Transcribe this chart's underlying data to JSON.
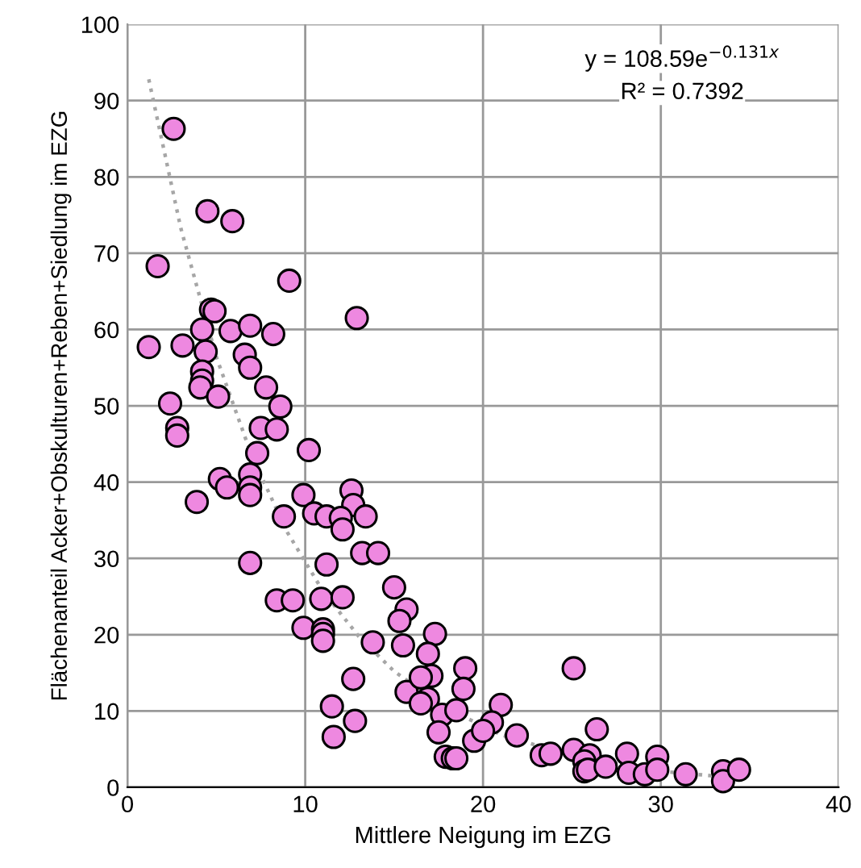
{
  "chart_data": {
    "type": "scatter",
    "xlabel": "Mittlere Neigung im EZG",
    "ylabel": "Flächenanteil Acker+Obskulturen+Reben+Siedlung im EZG",
    "xlim": [
      0,
      40
    ],
    "ylim": [
      0,
      100
    ],
    "xticks": [
      0,
      10,
      20,
      30,
      40
    ],
    "yticks": [
      0,
      10,
      20,
      30,
      40,
      50,
      60,
      70,
      80,
      90,
      100
    ],
    "grid": true,
    "marker": "circle",
    "annotations": [
      "y = 108.59e$^{−0.131x}$",
      "R² = 0.7392"
    ],
    "series": [
      {
        "type": "line",
        "color": "#a6a6a6",
        "line_style": "dotted",
        "marker": "none",
        "x": [
          1.2,
          3,
          5,
          7,
          9,
          11,
          13,
          15,
          18,
          21,
          25,
          30,
          34.4
        ],
        "values": [
          92.8,
          73.3,
          56.4,
          43.4,
          33.4,
          25.7,
          19.8,
          15.2,
          10.3,
          6.9,
          4.1,
          2.1,
          1.2
        ]
      },
      {
        "color": "#ee88e0",
        "x": [
          2.6,
          1.7,
          4.5,
          5.9,
          1.2,
          9.1,
          12.9,
          4.7,
          4.9,
          4.2,
          5.8,
          6.9,
          8.2,
          3.1,
          4.4,
          6.6,
          4.2,
          6.9,
          4.2,
          4.1,
          7.8,
          2.4,
          5.1,
          8.6,
          2.8,
          2.8,
          7.5,
          8.4,
          7.3,
          10.2,
          5.2,
          6.9,
          5.6,
          6.9,
          6.9,
          3.9,
          9.9,
          12.6,
          12.7,
          10.5,
          11.2,
          12.0,
          13.4,
          8.8,
          12.1,
          13.2,
          14.1,
          6.9,
          11.2,
          15.0,
          8.4,
          9.3,
          10.9,
          12.1,
          15.7,
          9.9,
          11.0,
          11.0,
          11.0,
          15.3,
          13.8,
          15.5,
          17.3,
          12.7,
          16.9,
          19.0,
          15.7,
          16.9,
          17.1,
          16.5,
          18.9,
          11.5,
          12.8,
          16.5,
          17.7,
          18.5,
          21.0,
          20.5,
          17.5,
          19.5,
          20.0,
          21.9,
          11.6,
          17.9,
          18.3,
          18.5,
          25.1,
          26.4,
          23.3,
          23.8,
          25.1,
          26.0,
          25.7,
          25.7,
          25.9,
          26.9,
          28.1,
          28.2,
          29.1,
          29.8,
          29.8,
          31.4,
          33.5,
          33.5,
          34.4
        ],
        "values": [
          86.3,
          68.3,
          75.5,
          74.2,
          57.7,
          66.4,
          61.5,
          62.6,
          62.4,
          60.0,
          59.8,
          60.5,
          59.4,
          57.9,
          57.1,
          56.7,
          54.5,
          55.0,
          53.3,
          52.4,
          52.4,
          50.3,
          51.2,
          49.9,
          47.1,
          46.1,
          47.1,
          46.9,
          43.8,
          44.2,
          40.4,
          41.0,
          39.3,
          39.3,
          38.3,
          37.4,
          38.3,
          38.9,
          37.0,
          35.9,
          35.5,
          35.3,
          35.5,
          35.5,
          33.8,
          30.7,
          30.7,
          29.4,
          29.2,
          26.2,
          24.5,
          24.5,
          24.7,
          24.9,
          23.3,
          20.9,
          20.7,
          20.1,
          19.2,
          21.8,
          19.0,
          18.6,
          20.1,
          14.2,
          17.5,
          15.6,
          12.5,
          11.6,
          14.6,
          14.4,
          12.9,
          10.6,
          8.7,
          11.0,
          9.5,
          10.1,
          10.8,
          8.5,
          7.2,
          6.1,
          7.4,
          6.8,
          6.6,
          4.0,
          3.8,
          3.8,
          15.6,
          7.6,
          4.2,
          4.4,
          4.9,
          4.2,
          3.4,
          2.1,
          2.3,
          2.7,
          4.4,
          1.9,
          1.7,
          4.0,
          2.3,
          1.7,
          2.1,
          0.8,
          2.3
        ]
      }
    ]
  }
}
